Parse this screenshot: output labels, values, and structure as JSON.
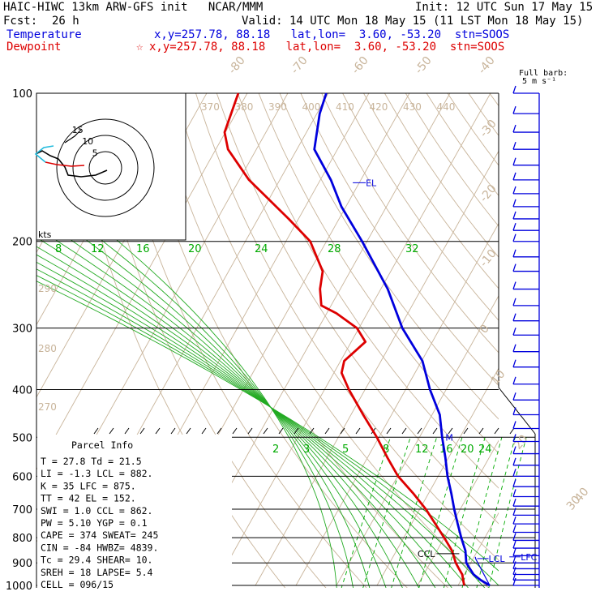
{
  "header": {
    "title": "HAIC-HIWC 13km ARW-GFS init   NCAR/MMM",
    "init": "Init: 12 UTC Sun 17 May 15",
    "fcst_label": "Fcst:",
    "fcst_value": "26 h",
    "valid": "Valid: 14 UTC Mon 18 May 15 (11 LST Mon 18 May 15)",
    "temperature_label": "Temperature",
    "temperature_info": "x,y=257.78, 88.18   lat,lon=  3.60, -53.20  stn=SOOS",
    "dewpoint_label": "Dewpoint",
    "dewpoint_marker": "☆",
    "dewpoint_info": "x,y=257.78, 88.18   lat,lon=  3.60, -53.20  stn=SOOS"
  },
  "colors": {
    "temperature": "#0000dd",
    "dewpoint": "#dd0000",
    "isotherm": "#c8b49a",
    "mixing_ratio": "#00aa00",
    "adiabat": "#22aa22"
  },
  "barb_legend": {
    "line1": "Full barb:",
    "line2": "5 m s⁻¹"
  },
  "hodograph": {
    "rings": [
      "5",
      "10",
      "15"
    ],
    "units": "kts"
  },
  "chart_data": {
    "type": "skew-t log-p",
    "pressure_labels": [
      "100",
      "200",
      "300",
      "400",
      "500",
      "600",
      "700",
      "800",
      "900",
      "1000"
    ],
    "pressure_values": [
      100,
      200,
      300,
      400,
      500,
      600,
      700,
      800,
      900,
      1000
    ],
    "ylim": [
      1000,
      100
    ],
    "isotherm_labels": [
      "-80",
      "-70",
      "-60",
      "-50",
      "-40",
      "-30",
      "-20",
      "-10",
      "0",
      "10",
      "20",
      "30",
      "40"
    ],
    "theta_labels": [
      "370",
      "380",
      "390",
      "400",
      "410",
      "420",
      "430",
      "440"
    ],
    "theta_left_labels": [
      "290",
      "280",
      "270"
    ],
    "mixing_ratio_labels_top": [
      "8",
      "12",
      "16",
      "20",
      "24",
      "28",
      "32"
    ],
    "mixing_ratio_labels_low": [
      "2",
      "3",
      "5",
      "8",
      "12",
      "16",
      "20",
      "24"
    ],
    "temperature_profile": {
      "pressure": [
        1000,
        975,
        950,
        925,
        900,
        850,
        800,
        750,
        700,
        650,
        600,
        550,
        500,
        450,
        400,
        350,
        300,
        250,
        200,
        170,
        150,
        130,
        110,
        100
      ],
      "temperature": [
        27.8,
        24.8,
        22.3,
        20.6,
        18.9,
        17.0,
        14.2,
        11.4,
        8.5,
        5.6,
        2.3,
        -0.8,
        -4.4,
        -8.1,
        -14.0,
        -19.8,
        -29.3,
        -38.3,
        -51.2,
        -61.1,
        -67.4,
        -75.7,
        -79.3,
        -80.5
      ]
    },
    "dewpoint_profile": {
      "pressure": [
        1000,
        975,
        950,
        925,
        900,
        850,
        800,
        750,
        700,
        650,
        600,
        550,
        500,
        450,
        400,
        370,
        350,
        320,
        300,
        280,
        270,
        250,
        230,
        200,
        180,
        150,
        130,
        120,
        100
      ],
      "dewpoint": [
        21.5,
        20.5,
        19.5,
        17.9,
        16.3,
        13.7,
        10.0,
        5.9,
        1.5,
        -3.8,
        -9.9,
        -15.1,
        -20.5,
        -27.0,
        -34.0,
        -38.1,
        -39.1,
        -36.5,
        -40.5,
        -47.6,
        -52.4,
        -55.0,
        -56.8,
        -64.0,
        -72.4,
        -87.6,
        -97.0,
        -100.2,
        -102.2
      ]
    },
    "profile_labels": {
      "el": "EL",
      "ccl": "CCL",
      "lcl": "LCL",
      "lfc": "LFC",
      "m": "M"
    },
    "wind_barbs": [
      {
        "p": 100,
        "barbs": 1
      },
      {
        "p": 110,
        "barbs": 1
      },
      {
        "p": 120,
        "barbs": 1
      },
      {
        "p": 130,
        "barbs": 1
      },
      {
        "p": 140,
        "barbs": 1
      },
      {
        "p": 150,
        "barbs": 1
      },
      {
        "p": 160,
        "barbs": 1
      },
      {
        "p": 170,
        "barbs": 1
      },
      {
        "p": 180,
        "barbs": 1
      },
      {
        "p": 190,
        "barbs": 1
      },
      {
        "p": 200,
        "barbs": 1
      },
      {
        "p": 215,
        "barbs": 1
      },
      {
        "p": 230,
        "barbs": 1
      },
      {
        "p": 250,
        "barbs": 1
      },
      {
        "p": 270,
        "barbs": 1
      },
      {
        "p": 290,
        "barbs": 1
      },
      {
        "p": 310,
        "barbs": 1
      },
      {
        "p": 335,
        "barbs": 1
      },
      {
        "p": 360,
        "barbs": 1
      },
      {
        "p": 390,
        "barbs": 1
      },
      {
        "p": 420,
        "barbs": 1
      },
      {
        "p": 450,
        "barbs": 1
      },
      {
        "p": 480,
        "barbs": 1
      },
      {
        "p": 510,
        "barbs": 1
      },
      {
        "p": 540,
        "barbs": 1
      },
      {
        "p": 570,
        "barbs": 1
      },
      {
        "p": 600,
        "barbs": 1
      },
      {
        "p": 630,
        "barbs": 1
      },
      {
        "p": 660,
        "barbs": 1
      },
      {
        "p": 690,
        "barbs": 1
      },
      {
        "p": 720,
        "barbs": 1
      },
      {
        "p": 750,
        "barbs": 1
      },
      {
        "p": 780,
        "barbs": 1
      },
      {
        "p": 810,
        "barbs": 1
      },
      {
        "p": 840,
        "barbs": 1
      },
      {
        "p": 870,
        "barbs": 1
      },
      {
        "p": 900,
        "barbs": 1
      },
      {
        "p": 925,
        "barbs": 1
      },
      {
        "p": 950,
        "barbs": 1
      },
      {
        "p": 975,
        "barbs": 1
      },
      {
        "p": 1000,
        "barbs": 1
      }
    ]
  },
  "parcel_info": {
    "title": "Parcel Info",
    "lines": [
      "T  =   27.8 Td =  21.5",
      "LI =   -1.3 LCL =  882.",
      "K  =     35 LFC =  875.",
      "TT =     42 EL  =  152.",
      "SWI =   1.0 CCL =  862.",
      "PW =   5.10 YGP =   0.1",
      "CAPE =  374 SWEAT=  245",
      "CIN =   -84 HWBZ= 4839.",
      "Tc =   29.4 SHEAR=  10.",
      "SREH =   18 LAPSE=  5.4",
      "CELL = 096/15"
    ]
  }
}
